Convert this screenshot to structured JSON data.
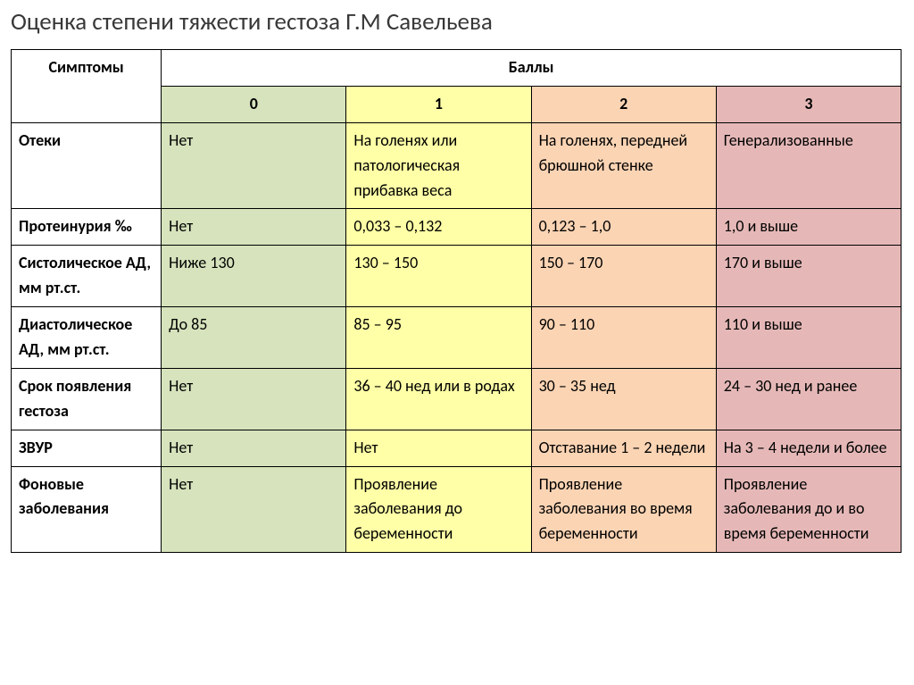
{
  "title": "Оценка степени тяжести гестоза Г.М Савельева",
  "table": {
    "header_symptoms": "Симптомы",
    "header_scores": "Баллы",
    "score_labels": [
      "0",
      "1",
      "2",
      "3"
    ],
    "column_colors": {
      "score0": "#d6e3bc",
      "score1": "#feffa6",
      "score2": "#fbd4b4",
      "score3": "#e5b8b7"
    },
    "border_color": "#000000",
    "font_family": "Calibri",
    "title_color": "#383838",
    "title_fontsize": 27,
    "cell_fontsize": 18,
    "rows": [
      {
        "symptom": "Отеки",
        "cells": [
          "Нет",
          "На голенях или патологическая прибавка веса",
          "На голенях, передней брюшной стенке",
          "Генерализованные"
        ]
      },
      {
        "symptom": "Протеинурия ‰",
        "cells": [
          "Нет",
          "0,033 – 0,132",
          "0,123 – 1,0",
          "1,0 и выше"
        ]
      },
      {
        "symptom": "Систолическое АД, мм рт.ст.",
        "cells": [
          "Ниже 130",
          "130 – 150",
          "150 – 170",
          "170 и выше"
        ]
      },
      {
        "symptom": "Диастолическое АД, мм рт.ст.",
        "cells": [
          "До 85",
          "85 – 95",
          "90 – 110",
          "110 и выше"
        ]
      },
      {
        "symptom": "Срок появления гестоза",
        "cells": [
          "Нет",
          "36 – 40 нед или в родах",
          "30 – 35 нед",
          "24 – 30 нед и ранее"
        ]
      },
      {
        "symptom": "ЗВУР",
        "cells": [
          "Нет",
          "Нет",
          "Отставание 1 – 2 недели",
          "На 3 – 4 недели и более"
        ]
      },
      {
        "symptom": "Фоновые заболевания",
        "cells": [
          "Нет",
          "Проявление заболевания до беременности",
          "Проявление заболевания во время беременности",
          "Проявление заболевания до и во время беременности"
        ]
      }
    ]
  }
}
